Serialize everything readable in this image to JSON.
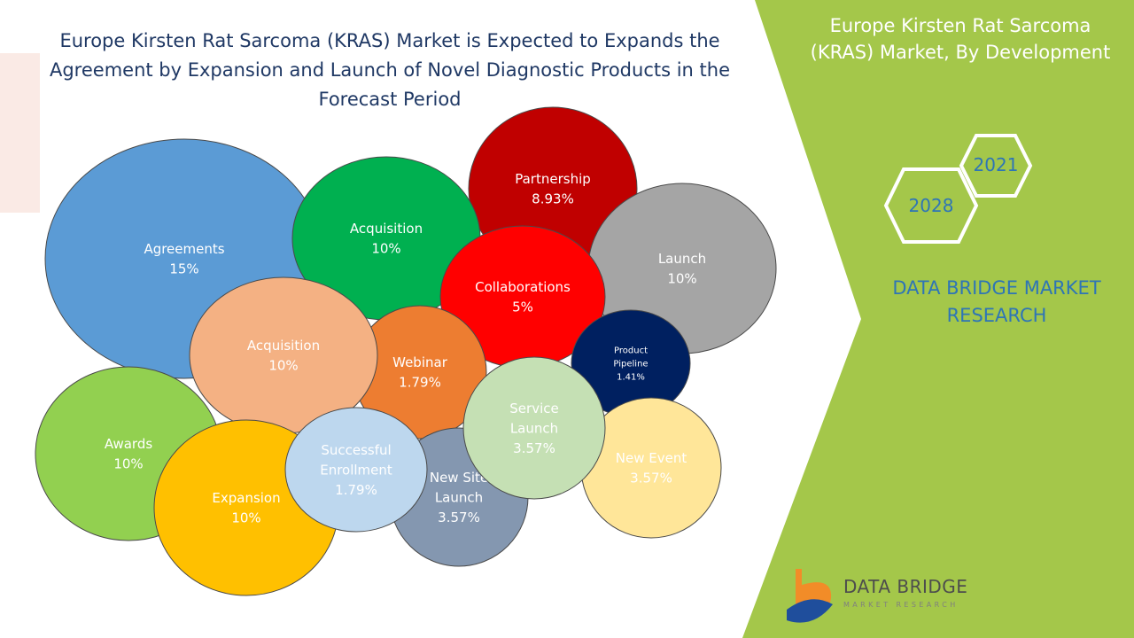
{
  "title_lines": [
    "Europe Kirsten Rat Sarcoma (KRAS) Market is Expected to Expands the",
    "Agreement  by Expansion and Launch of  Novel Diagnostic Products in the",
    "Forecast Period"
  ],
  "panel": {
    "title_lines": [
      "Europe Kirsten Rat Sarcoma",
      "(KRAS) Market, By Development"
    ],
    "year_start": "2021",
    "year_end": "2028",
    "brand_lines": [
      "DATA BRIDGE MARKET",
      "RESEARCH"
    ],
    "logo_name": "DATA BRIDGE",
    "logo_sub": "MARKET RESEARCH"
  },
  "colors": {
    "panel_green": "#a4c74a",
    "title_navy": "#1f3864",
    "brand_blue": "#2e75b6"
  },
  "chart_data": {
    "type": "bubble",
    "title": "Europe Kirsten Rat Sarcoma (KRAS) Market is Expected to Expands the Agreement  by Expansion and Launch of  Novel Diagnostic Products in the Forecast Period",
    "series": [
      {
        "label": "Agreements",
        "value": 15,
        "display": "15%",
        "color": "#5b9bd5",
        "text_color": "#ffffff"
      },
      {
        "label": "Partnership",
        "value": 8.93,
        "display": "8.93%",
        "color": "#c00000",
        "text_color": "#ffffff"
      },
      {
        "label": "Acquisition",
        "value": 10,
        "display": "10%",
        "color": "#00b050",
        "text_color": "#ffffff"
      },
      {
        "label": "Launch",
        "value": 10,
        "display": "10%",
        "color": "#a5a5a5",
        "text_color": "#ffffff"
      },
      {
        "label": "Collaborations",
        "value": 5,
        "display": "5%",
        "color": "#ff0000",
        "text_color": "#ffffff"
      },
      {
        "label": "Product Pipeline",
        "value": 1.41,
        "display": "1.41%",
        "color": "#002060",
        "text_color": "#ffffff"
      },
      {
        "label": "Webinar",
        "value": 1.79,
        "display": "1.79%",
        "color": "#ed7d31",
        "text_color": "#ffffff"
      },
      {
        "label": "Acquisition",
        "value": 10,
        "display": "10%",
        "color": "#f4b183",
        "text_color": "#ffffff"
      },
      {
        "label": "Awards",
        "value": 10,
        "display": "10%",
        "color": "#92d050",
        "text_color": "#ffffff"
      },
      {
        "label": "New Site Launch",
        "value": 3.57,
        "display": "3.57%",
        "color": "#8497b0",
        "text_color": "#ffffff"
      },
      {
        "label": "New Event",
        "value": 3.57,
        "display": "3.57%",
        "color": "#ffe699",
        "text_color": "#ffffff"
      },
      {
        "label": "Service Launch",
        "value": 3.57,
        "display": "3.57%",
        "color": "#c5e0b4",
        "text_color": "#ffffff"
      },
      {
        "label": "Expansion",
        "value": 10,
        "display": "10%",
        "color": "#ffc000",
        "text_color": "#ffffff"
      },
      {
        "label": "Successful Enrollment",
        "value": 1.79,
        "display": "1.79%",
        "color": "#bdd7ee",
        "text_color": "#ffffff"
      }
    ]
  }
}
